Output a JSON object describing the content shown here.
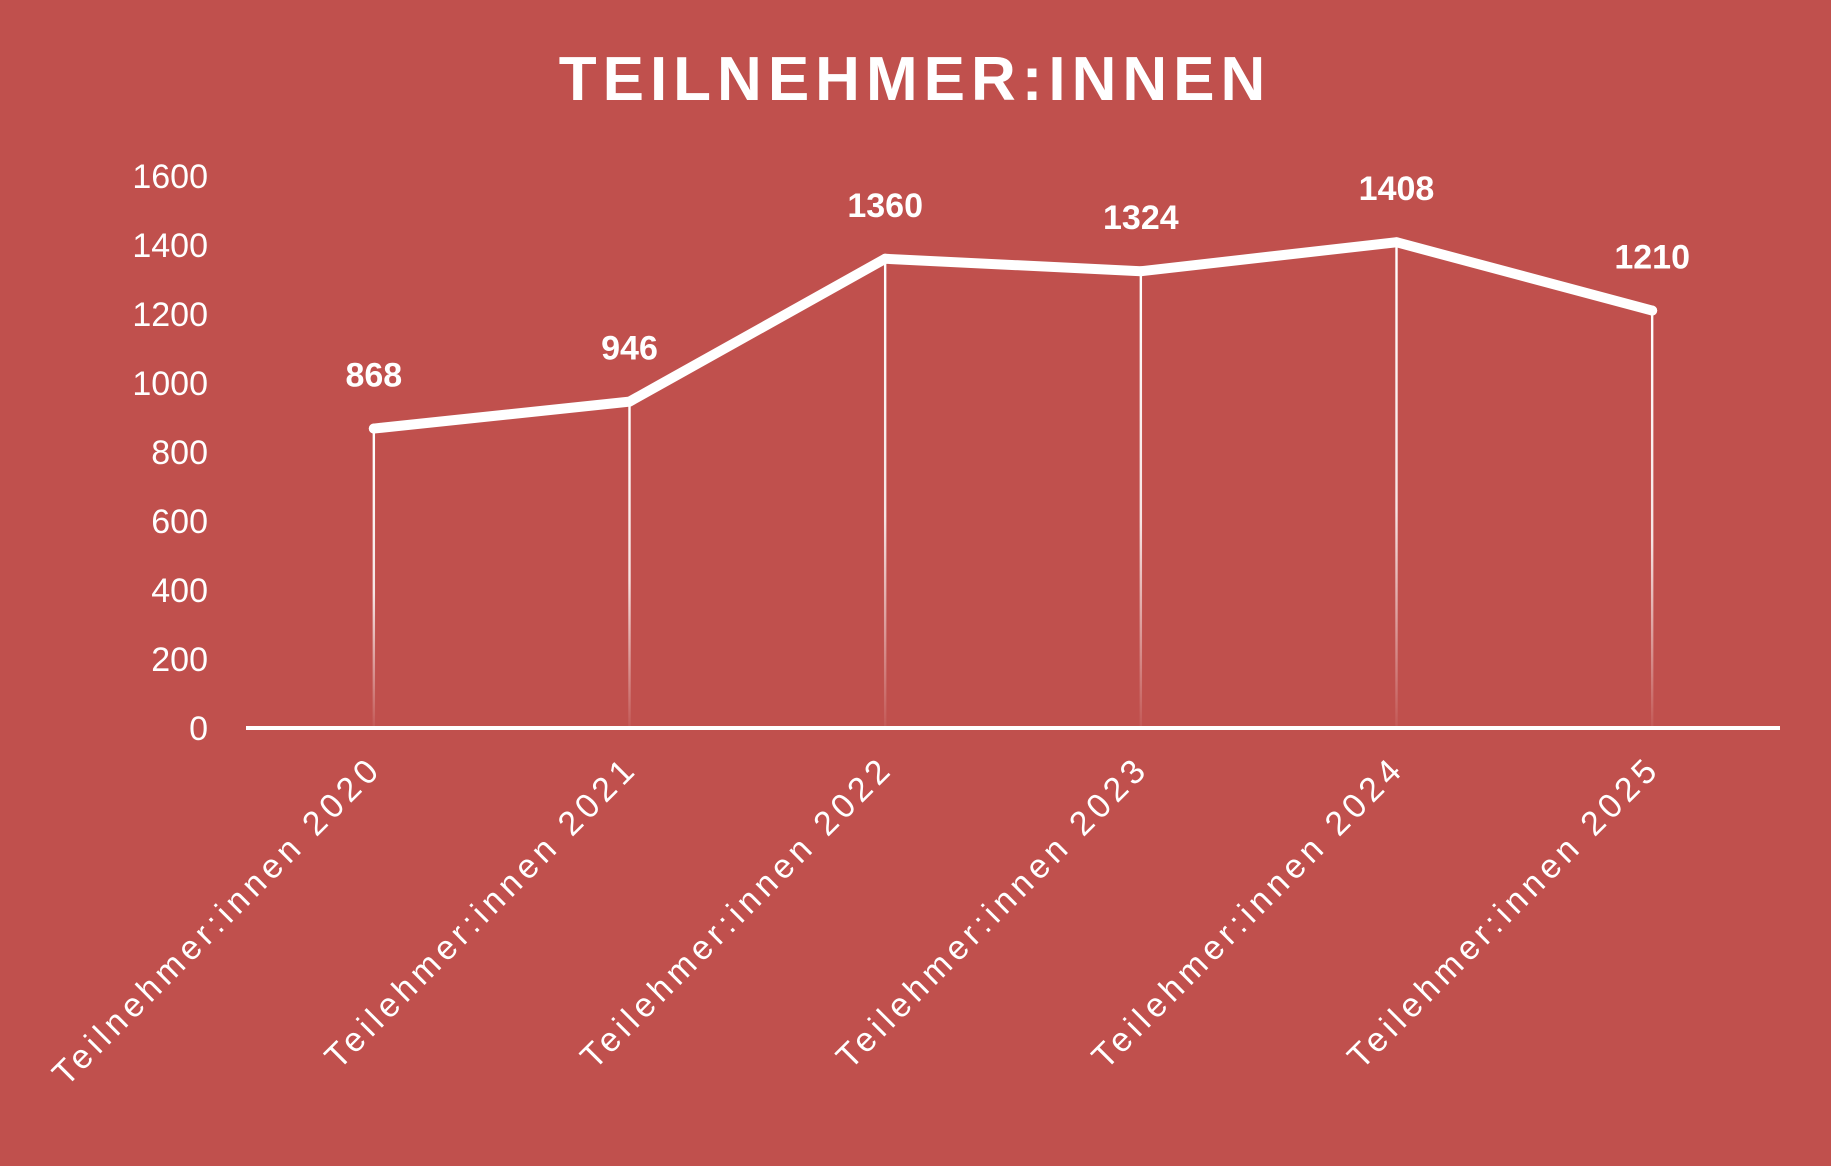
{
  "chart_data": {
    "type": "line",
    "title": "TEILNEHMER:INNEN",
    "categories": [
      "Teilnehmer:innen 2020",
      "Teilehmer:innen 2021",
      "Teilehmer:innen 2022",
      "Teilehmer:innen 2023",
      "Teilehmer:innen 2024",
      "Teilehmer:innen 2025"
    ],
    "values": [
      868,
      946,
      1360,
      1324,
      1408,
      1210
    ],
    "data_labels": [
      "868",
      "946",
      "1360",
      "1324",
      "1408",
      "1210"
    ],
    "yticks": [
      "0",
      "200",
      "400",
      "600",
      "800",
      "1000",
      "1200",
      "1400",
      "1600"
    ],
    "ylim": [
      0,
      1600
    ],
    "xlabel": "",
    "ylabel": "",
    "grid": false,
    "legend": "none",
    "drop_lines": true,
    "colors": {
      "background": "#c0504d",
      "foreground": "#ffffff"
    }
  }
}
